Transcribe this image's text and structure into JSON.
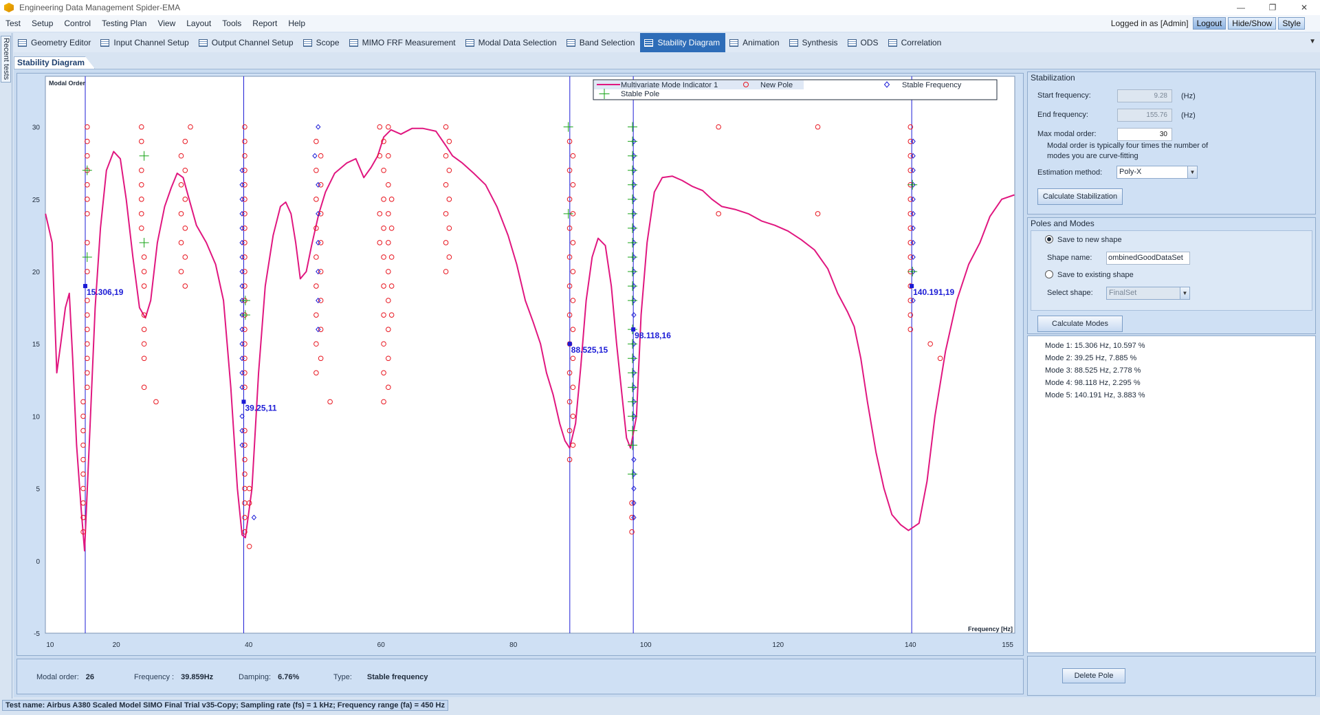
{
  "window": {
    "title": "Engineering Data Management Spider-EMA"
  },
  "menu": {
    "items": [
      "Test",
      "Setup",
      "Control",
      "Testing Plan",
      "View",
      "Layout",
      "Tools",
      "Report",
      "Help"
    ],
    "login_text": "Logged in as [Admin]",
    "logout_label": "Logout",
    "hideshow_label": "Hide/Show",
    "style_label": "Style"
  },
  "toolbar": {
    "tabs": [
      {
        "label": "Geometry Editor"
      },
      {
        "label": "Input Channel Setup"
      },
      {
        "label": "Output Channel Setup"
      },
      {
        "label": "Scope"
      },
      {
        "label": "MIMO FRF Measurement"
      },
      {
        "label": "Modal Data Selection"
      },
      {
        "label": "Band Selection"
      },
      {
        "label": "Stability Diagram",
        "active": true
      },
      {
        "label": "Animation"
      },
      {
        "label": "Synthesis"
      },
      {
        "label": "ODS"
      },
      {
        "label": "Correlation"
      }
    ]
  },
  "left_strip": {
    "label": "Recent tests"
  },
  "document": {
    "tab_label": "Stability Diagram"
  },
  "chart_data": {
    "type": "scatter",
    "ylabel": "Modal Order",
    "xlabel": "Frequency [Hz]",
    "xlim": [
      9.28,
      155.76
    ],
    "ylim": [
      -5,
      33.5
    ],
    "x_ticks": [
      10,
      20,
      40,
      60,
      80,
      100,
      120,
      140,
      155
    ],
    "y_ticks": [
      -5,
      0,
      5,
      10,
      15,
      20,
      25,
      30
    ],
    "legend_position": "top",
    "legend": [
      {
        "label": "Multivariate Mode Indicator 1",
        "kind": "line",
        "color": "#e0167f"
      },
      {
        "label": "New Pole",
        "kind": "circle",
        "color": "#e8141e"
      },
      {
        "label": "Stable Frequency",
        "kind": "diamond",
        "color": "#1b1bd6"
      },
      {
        "label": "Stable Pole",
        "kind": "plus",
        "color": "#16a316"
      }
    ],
    "mmif_curve": [
      [
        9.3,
        24
      ],
      [
        10.3,
        22
      ],
      [
        11,
        13
      ],
      [
        11.6,
        15
      ],
      [
        12.3,
        17.5
      ],
      [
        12.9,
        18.5
      ],
      [
        13.4,
        14
      ],
      [
        14,
        8
      ],
      [
        14.7,
        3.5
      ],
      [
        15.2,
        0.7
      ],
      [
        16,
        9
      ],
      [
        16.8,
        17.5
      ],
      [
        17.6,
        23
      ],
      [
        18.5,
        27
      ],
      [
        19.6,
        28.3
      ],
      [
        20.6,
        27.8
      ],
      [
        21.5,
        25
      ],
      [
        22.5,
        21
      ],
      [
        23.5,
        17.5
      ],
      [
        24.4,
        16.8
      ],
      [
        25.2,
        18
      ],
      [
        26.2,
        22
      ],
      [
        27.3,
        24.5
      ],
      [
        28.3,
        25.8
      ],
      [
        29.2,
        26.8
      ],
      [
        30.1,
        26.5
      ],
      [
        31,
        25
      ],
      [
        32.1,
        23.2
      ],
      [
        33.6,
        22
      ],
      [
        35,
        20.5
      ],
      [
        36.2,
        18
      ],
      [
        37.3,
        12
      ],
      [
        38.3,
        5
      ],
      [
        39,
        1.8
      ],
      [
        39.5,
        1.6
      ],
      [
        40.5,
        5
      ],
      [
        41.5,
        13
      ],
      [
        42.5,
        19
      ],
      [
        43.7,
        22.5
      ],
      [
        44.8,
        24.5
      ],
      [
        45.6,
        24.8
      ],
      [
        46.4,
        24
      ],
      [
        47.1,
        22
      ],
      [
        47.8,
        19.5
      ],
      [
        48.7,
        20
      ],
      [
        49.5,
        21.8
      ],
      [
        50.6,
        24
      ],
      [
        51.6,
        25.5
      ],
      [
        53,
        26.8
      ],
      [
        54.8,
        27.5
      ],
      [
        56.2,
        27.8
      ],
      [
        57.4,
        26.5
      ],
      [
        58.5,
        27.2
      ],
      [
        59.5,
        28
      ],
      [
        60.4,
        29.3
      ],
      [
        61.5,
        29.8
      ],
      [
        63,
        29.5
      ],
      [
        64.7,
        29.9
      ],
      [
        66.3,
        29.9
      ],
      [
        68.3,
        29.7
      ],
      [
        69.8,
        28.7
      ],
      [
        70.8,
        28
      ],
      [
        72.3,
        27.5
      ],
      [
        74,
        26.8
      ],
      [
        75.8,
        26
      ],
      [
        77.5,
        24.5
      ],
      [
        79.2,
        22.5
      ],
      [
        80.5,
        20.5
      ],
      [
        81.8,
        18
      ],
      [
        83,
        16.5
      ],
      [
        84.1,
        15
      ],
      [
        85,
        13
      ],
      [
        86,
        11.5
      ],
      [
        87,
        9.5
      ],
      [
        87.8,
        8.3
      ],
      [
        88.5,
        7.8
      ],
      [
        89.4,
        9.5
      ],
      [
        90.2,
        13.5
      ],
      [
        91,
        18
      ],
      [
        91.9,
        21
      ],
      [
        92.8,
        22.3
      ],
      [
        93.9,
        21.8
      ],
      [
        94.8,
        19
      ],
      [
        95.6,
        15
      ],
      [
        96.4,
        11.5
      ],
      [
        97.1,
        8.5
      ],
      [
        97.7,
        7.8
      ],
      [
        98.6,
        10
      ],
      [
        99.3,
        17
      ],
      [
        100.2,
        22
      ],
      [
        101.3,
        25.5
      ],
      [
        102.5,
        26.5
      ],
      [
        104,
        26.6
      ],
      [
        105.5,
        26.3
      ],
      [
        107,
        25.9
      ],
      [
        108.6,
        25.6
      ],
      [
        110,
        25
      ],
      [
        111.5,
        24.5
      ],
      [
        113.5,
        24.3
      ],
      [
        115.5,
        24
      ],
      [
        117.5,
        23.5
      ],
      [
        119.5,
        23.2
      ],
      [
        121.5,
        22.8
      ],
      [
        123.5,
        22.2
      ],
      [
        125.5,
        21.5
      ],
      [
        127.5,
        20.2
      ],
      [
        129,
        18.5
      ],
      [
        130.5,
        17.2
      ],
      [
        131.5,
        16.2
      ],
      [
        132.5,
        14
      ],
      [
        133.5,
        11
      ],
      [
        134.8,
        7.5
      ],
      [
        136,
        5
      ],
      [
        137.2,
        3.2
      ],
      [
        138.5,
        2.5
      ],
      [
        139.7,
        2.1
      ],
      [
        141.3,
        2.6
      ],
      [
        142.5,
        5.5
      ],
      [
        143.7,
        10
      ],
      [
        145.3,
        14.5
      ],
      [
        147,
        18
      ],
      [
        148.8,
        20.5
      ],
      [
        150.5,
        22
      ],
      [
        152,
        23.8
      ],
      [
        153.8,
        25
      ],
      [
        155.7,
        25.3
      ]
    ],
    "stable_frequency_lines": [
      15.306,
      39.25,
      88.525,
      98.118,
      140.191
    ],
    "markers": [
      {
        "x": 15.306,
        "y": 19,
        "label": "15.306,19"
      },
      {
        "x": 39.25,
        "y": 11,
        "label": "39.25,11"
      },
      {
        "x": 88.525,
        "y": 15,
        "label": "88.525,15"
      },
      {
        "x": 98.118,
        "y": 16,
        "label": "98.118,16"
      },
      {
        "x": 140.191,
        "y": 19,
        "label": "140.191,19"
      }
    ],
    "new_poles_columns": [
      {
        "x": 15.0,
        "orders": [
          2,
          3,
          4,
          5,
          6,
          7,
          8,
          9,
          10,
          11
        ]
      },
      {
        "x": 15.6,
        "orders": [
          12,
          13,
          14,
          15,
          16,
          17,
          18,
          20,
          22,
          24,
          25,
          26,
          27,
          28,
          29,
          30
        ]
      },
      {
        "x": 23.8,
        "orders": [
          23,
          24,
          25,
          26,
          27,
          29,
          30
        ]
      },
      {
        "x": 24.2,
        "orders": [
          12,
          14,
          15,
          16,
          17,
          19,
          20,
          21
        ]
      },
      {
        "x": 26.0,
        "orders": [
          11
        ]
      },
      {
        "x": 29.8,
        "orders": [
          20,
          22,
          24,
          26,
          28
        ]
      },
      {
        "x": 30.4,
        "orders": [
          19,
          21,
          23,
          25,
          27,
          29
        ]
      },
      {
        "x": 31.2,
        "orders": [
          30
        ]
      },
      {
        "x": 39.4,
        "orders": [
          2,
          3,
          4,
          5,
          6,
          7,
          8,
          9,
          12,
          13,
          14,
          15,
          16,
          17,
          18,
          19,
          20,
          21,
          22,
          23,
          24,
          25,
          26,
          27,
          28,
          29,
          30
        ]
      },
      {
        "x": 40.1,
        "orders": [
          1,
          4,
          5
        ]
      },
      {
        "x": 50.2,
        "orders": [
          29,
          27,
          25,
          23,
          21,
          19,
          17,
          15,
          13
        ]
      },
      {
        "x": 50.9,
        "orders": [
          28,
          26,
          24,
          22,
          20,
          18,
          16,
          14
        ]
      },
      {
        "x": 52.3,
        "orders": [
          11
        ]
      },
      {
        "x": 59.8,
        "orders": [
          30,
          28,
          24,
          22
        ]
      },
      {
        "x": 60.4,
        "orders": [
          29,
          27,
          25,
          23,
          21,
          19,
          17,
          15,
          13,
          11
        ]
      },
      {
        "x": 61.1,
        "orders": [
          30,
          28,
          26,
          24,
          22,
          20,
          18,
          16,
          14,
          12
        ]
      },
      {
        "x": 61.6,
        "orders": [
          25,
          23,
          21,
          19,
          17
        ]
      },
      {
        "x": 69.8,
        "orders": [
          30,
          28,
          26,
          24,
          22,
          20
        ]
      },
      {
        "x": 70.3,
        "orders": [
          29,
          27,
          25,
          23,
          21
        ]
      },
      {
        "x": 88.5,
        "orders": [
          7,
          9,
          11,
          13,
          15,
          17,
          19,
          21,
          23,
          25,
          27,
          29
        ]
      },
      {
        "x": 89.0,
        "orders": [
          8,
          10,
          12,
          14,
          16,
          18,
          20,
          22,
          24,
          26,
          28
        ]
      },
      {
        "x": 97.9,
        "orders": [
          2,
          3,
          4
        ]
      },
      {
        "x": 111.0,
        "orders": [
          24,
          30
        ]
      },
      {
        "x": 126.0,
        "orders": [
          24,
          30
        ]
      },
      {
        "x": 140.0,
        "orders": [
          16,
          17,
          18,
          19,
          20,
          21,
          22,
          23,
          24,
          25,
          26,
          27,
          28,
          29,
          30
        ]
      },
      {
        "x": 143.0,
        "orders": [
          15
        ]
      },
      {
        "x": 144.5,
        "orders": [
          14
        ]
      }
    ],
    "stable_freq_columns": [
      {
        "x": 39.0,
        "orders": [
          8,
          9,
          10,
          12,
          13,
          14,
          15,
          16,
          17,
          18,
          19,
          20,
          21,
          22,
          23,
          24,
          25,
          26,
          27
        ]
      },
      {
        "x": 40.8,
        "orders": [
          3
        ]
      },
      {
        "x": 50.0,
        "orders": [
          28
        ]
      },
      {
        "x": 50.5,
        "orders": [
          30,
          26,
          24,
          22,
          20,
          18,
          16
        ]
      },
      {
        "x": 98.2,
        "orders": [
          3,
          4,
          5,
          6,
          7,
          10,
          11,
          12,
          13,
          14,
          15,
          17,
          18,
          19,
          20,
          21,
          22,
          23,
          24,
          25,
          26,
          27,
          28,
          29
        ]
      },
      {
        "x": 140.4,
        "orders": [
          18,
          20,
          21,
          22,
          23,
          24,
          25,
          26,
          27,
          28,
          29
        ]
      }
    ],
    "stable_pole_columns": [
      {
        "x": 15.6,
        "orders": [
          21,
          27
        ]
      },
      {
        "x": 24.2,
        "orders": [
          22,
          28
        ]
      },
      {
        "x": 39.5,
        "orders": [
          17,
          18
        ]
      },
      {
        "x": 88.3,
        "orders": [
          24,
          30
        ]
      },
      {
        "x": 98.0,
        "orders": [
          6,
          8,
          9,
          10,
          11,
          12,
          13,
          14,
          15,
          16,
          18,
          19,
          20,
          21,
          22,
          23,
          24,
          25,
          26,
          27,
          28,
          29,
          30
        ]
      },
      {
        "x": 140.3,
        "orders": [
          20,
          26
        ]
      }
    ]
  },
  "status": {
    "modal_order_label": "Modal order:",
    "modal_order_value": "26",
    "frequency_label": "Frequency :",
    "frequency_value": "39.859Hz",
    "damping_label": "Damping:",
    "damping_value": "6.76%",
    "type_label": "Type:",
    "type_value": "Stable frequency"
  },
  "stabilization": {
    "title": "Stabilization",
    "start_freq_label": "Start frequency:",
    "start_freq_value": "9.28",
    "end_freq_label": "End frequency:",
    "end_freq_value": "155.76",
    "unit": "(Hz)",
    "max_order_label": "Max modal order:",
    "max_order_value": "30",
    "hint": "Modal order is typically four times the number of modes you are curve-fitting",
    "estimation_label": "Estimation method:",
    "estimation_value": "Poly-X",
    "calc_button": "Calculate Stabilization"
  },
  "poles_modes": {
    "title": "Poles and Modes",
    "save_new_label": "Save to new shape",
    "shape_name_label": "Shape name:",
    "shape_name_value": "ombinedGoodDataSet",
    "save_existing_label": "Save to existing shape",
    "select_shape_label": "Select shape:",
    "select_shape_value": "FinalSet",
    "calc_modes_button": "Calculate Modes"
  },
  "modes": [
    "Mode 1: 15.306 Hz, 10.597 %",
    "Mode 2: 39.25 Hz, 7.885 %",
    "Mode 3: 88.525 Hz, 2.778 %",
    "Mode 4: 98.118 Hz, 2.295 %",
    "Mode 5: 140.191 Hz, 3.883 %"
  ],
  "delete_pole_button": "Delete Pole",
  "footer": {
    "text": "Test name: Airbus A380 Scaled Model SIMO Final Trial v35-Copy; Sampling rate (fs) = 1 kHz; Frequency range (fa) = 450 Hz"
  },
  "colors": {
    "accent": "#2e6db8",
    "curve": "#e0167f",
    "new_pole": "#e8141e",
    "stable_freq": "#1b1bd6",
    "stable_pole": "#16a316",
    "marker_line": "#1b1bd6"
  }
}
